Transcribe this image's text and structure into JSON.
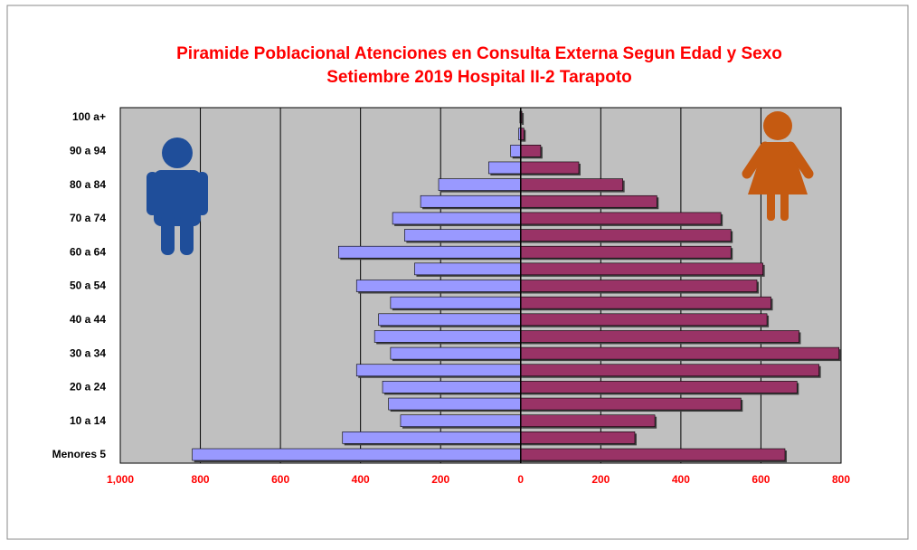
{
  "chart_data": {
    "type": "pyramid",
    "title": [
      "Piramide Poblacional  Atenciones en Consulta Externa  Segun Edad y Sexo",
      "Setiembre 2019  Hospital II-2 Tarapoto"
    ],
    "categories": [
      "Menores 5",
      null,
      "10 a 14",
      null,
      "20 a 24",
      null,
      "30 a 34",
      null,
      "40 a 44",
      null,
      "50 a 54",
      null,
      "60 a 64",
      null,
      "70 a 74",
      null,
      "80 a 84",
      null,
      "90 a 94",
      null,
      "100 a+"
    ],
    "series": [
      {
        "color": "#9999ff",
        "values": [
          -820,
          -445,
          -300,
          -330,
          -345,
          -410,
          -325,
          -365,
          -355,
          -325,
          -410,
          -265,
          -455,
          -290,
          -320,
          -250,
          -205,
          -80,
          -25,
          -5,
          -2
        ]
      },
      {
        "color": "#993366",
        "values": [
          660,
          285,
          335,
          550,
          690,
          745,
          795,
          695,
          615,
          625,
          590,
          605,
          525,
          525,
          500,
          340,
          255,
          145,
          50,
          8,
          3
        ]
      }
    ],
    "xlim": [
      -1000,
      800
    ],
    "xticks": [
      {
        "value": -1000,
        "label": "1,000"
      },
      {
        "value": -800,
        "label": "800"
      },
      {
        "value": -600,
        "label": "600"
      },
      {
        "value": -400,
        "label": "400"
      },
      {
        "value": -200,
        "label": "200"
      },
      0,
      200,
      400,
      600,
      800
    ],
    "grid": true
  }
}
